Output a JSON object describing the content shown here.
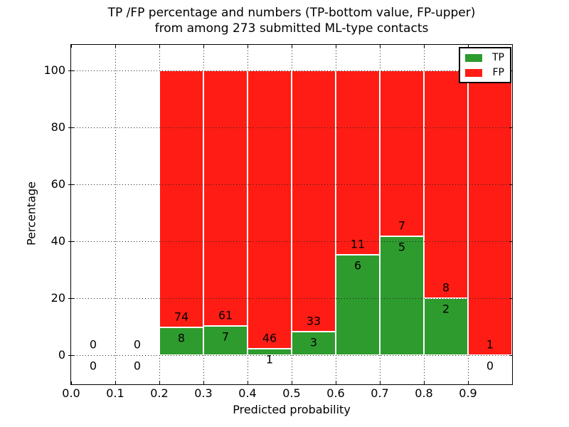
{
  "chart_data": {
    "type": "bar",
    "subtype": "stacked-percentage-histogram",
    "title_lines": [
      "TP /FP percentage and numbers (TP-bottom value, FP-upper)",
      "from among 273 submitted ML-type contacts"
    ],
    "xlabel": "Predicted probability",
    "ylabel": "Percentage",
    "total_contacts": 273,
    "xlim": [
      0.0,
      1.0
    ],
    "ylim": [
      -10.25,
      109.0
    ],
    "x_tick_labels": [
      "0.0",
      "0.1",
      "0.2",
      "0.3",
      "0.4",
      "0.5",
      "0.6",
      "0.7",
      "0.8",
      "0.9"
    ],
    "y_tick_values": [
      0,
      20,
      40,
      60,
      80,
      100
    ],
    "grid": true,
    "legend": {
      "position": "upper-right",
      "items": [
        {
          "label": "TP",
          "color": "#2e9b2e"
        },
        {
          "label": "FP",
          "color": "#ff1c14"
        }
      ]
    },
    "bins": [
      {
        "range": [
          0.0,
          0.1
        ],
        "tp": 0,
        "fp": 0
      },
      {
        "range": [
          0.1,
          0.2
        ],
        "tp": 0,
        "fp": 0
      },
      {
        "range": [
          0.2,
          0.3
        ],
        "tp": 8,
        "fp": 74
      },
      {
        "range": [
          0.3,
          0.4
        ],
        "tp": 7,
        "fp": 61
      },
      {
        "range": [
          0.4,
          0.5
        ],
        "tp": 1,
        "fp": 46
      },
      {
        "range": [
          0.5,
          0.6
        ],
        "tp": 3,
        "fp": 33
      },
      {
        "range": [
          0.6,
          0.7
        ],
        "tp": 6,
        "fp": 11
      },
      {
        "range": [
          0.7,
          0.8
        ],
        "tp": 5,
        "fp": 7
      },
      {
        "range": [
          0.8,
          0.9
        ],
        "tp": 2,
        "fp": 8
      },
      {
        "range": [
          0.9,
          1.0
        ],
        "tp": 0,
        "fp": 1
      }
    ],
    "colors": {
      "tp": "#2e9b2e",
      "fp": "#ff1c14",
      "bar_edge": "#ffffff",
      "grid": "#222222",
      "text": "#000000"
    }
  }
}
